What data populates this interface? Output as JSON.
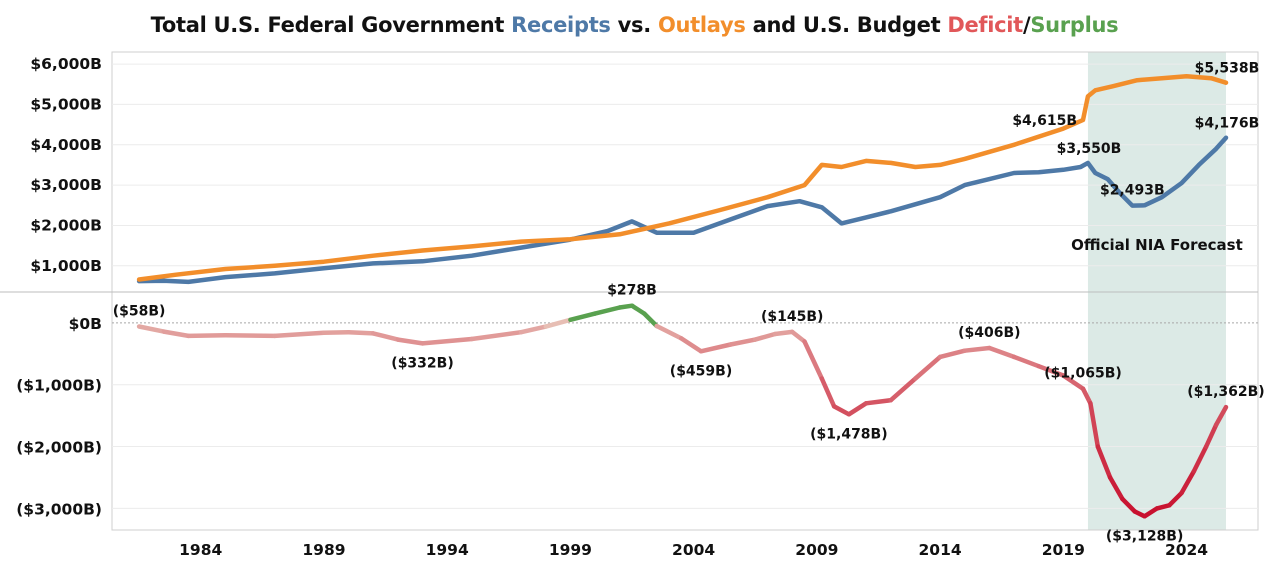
{
  "title": {
    "part1": "Total U.S. Federal Government ",
    "receipts": "Receipts",
    "part2": " vs. ",
    "outlays": "Outlays",
    "part3": " and U.S. Budget ",
    "deficit": "Deficit",
    "slash": "/",
    "surplus": "Surplus"
  },
  "colors": {
    "receipts": "#4E79A7",
    "outlays": "#F28E2B",
    "deficit_dark": "#C8102E",
    "deficit_light": "#E8C3B8",
    "surplus": "#59A14F",
    "forecast_band": "#DCEAE6",
    "title_text": "#111111"
  },
  "chart_data": [
    {
      "type": "line",
      "panel": "top",
      "xlabel": "",
      "ylabel": "",
      "xlim": [
        1980.4,
        2026.9
      ],
      "ylim": [
        350,
        6300
      ],
      "yticks": [
        1000,
        2000,
        3000,
        4000,
        5000,
        6000
      ],
      "ytick_labels": [
        "$1,000B",
        "$2,000B",
        "$3,000B",
        "$4,000B",
        "$5,000B",
        "$6,000B"
      ],
      "forecast_band": {
        "x0": 2020.0,
        "x1": 2025.6,
        "label": "Official NIA Forecast"
      },
      "series": [
        {
          "name": "Receipts",
          "color_key": "receipts",
          "x": [
            1981.5,
            1982.5,
            1983.5,
            1985,
            1987,
            1989,
            1991,
            1993,
            1995,
            1997,
            1999,
            2000.5,
            2001.5,
            2002.5,
            2004,
            2005.5,
            2007,
            2008.3,
            2009.2,
            2010,
            2011,
            2012,
            2014,
            2015,
            2016,
            2017,
            2018,
            2019,
            2019.7,
            2020.0,
            2020.3,
            2020.8,
            2021.3,
            2021.8,
            2022.3,
            2023,
            2023.8,
            2024.5,
            2025.2,
            2025.6
          ],
          "y": [
            620,
            630,
            600,
            720,
            810,
            940,
            1060,
            1110,
            1250,
            1450,
            1650,
            1860,
            2100,
            1820,
            1820,
            2150,
            2480,
            2600,
            2450,
            2050,
            2200,
            2350,
            2700,
            3000,
            3150,
            3300,
            3320,
            3380,
            3450,
            3550,
            3300,
            3150,
            2800,
            2493,
            2500,
            2700,
            3050,
            3500,
            3900,
            4176
          ]
        },
        {
          "name": "Outlays",
          "color_key": "outlays",
          "x": [
            1981.5,
            1983,
            1985,
            1987,
            1989,
            1991,
            1993,
            1995,
            1997,
            1999,
            2001,
            2003,
            2005,
            2007,
            2008.5,
            2009.2,
            2010,
            2011,
            2012,
            2013,
            2014,
            2015,
            2017,
            2019,
            2019.8,
            2020.0,
            2020.3,
            2021,
            2022,
            2023,
            2024,
            2025,
            2025.6
          ],
          "y": [
            660,
            780,
            920,
            1000,
            1100,
            1250,
            1380,
            1480,
            1600,
            1660,
            1780,
            2050,
            2370,
            2700,
            3000,
            3500,
            3450,
            3600,
            3550,
            3450,
            3500,
            3650,
            4000,
            4400,
            4615,
            5200,
            5350,
            5450,
            5600,
            5650,
            5700,
            5650,
            5538
          ]
        }
      ],
      "data_labels": [
        {
          "text": "$5,538B",
          "x": 2025.6,
          "y": 5538,
          "anchor": "above-right"
        },
        {
          "text": "$4,615B",
          "x": 2019.8,
          "y": 4615,
          "anchor": "left"
        },
        {
          "text": "$4,176B",
          "x": 2025.6,
          "y": 4176,
          "anchor": "above-right"
        },
        {
          "text": "$3,550B",
          "x": 2020.0,
          "y": 3550,
          "anchor": "above-right"
        },
        {
          "text": "$2,493B",
          "x": 2021.8,
          "y": 2493,
          "anchor": "above"
        }
      ]
    },
    {
      "type": "line",
      "panel": "bottom",
      "xlabel": "",
      "ylabel": "",
      "xlim": [
        1980.4,
        2026.9
      ],
      "ylim": [
        -3350,
        500
      ],
      "yticks": [
        -3000,
        -2000,
        -1000,
        0
      ],
      "ytick_labels": [
        "($3,000B)",
        "($2,000B)",
        "($1,000B)",
        "$0B"
      ],
      "xticks": [
        1984,
        1989,
        1994,
        1999,
        2004,
        2009,
        2014,
        2019,
        2024
      ],
      "xtick_labels": [
        "1984",
        "1989",
        "1994",
        "1999",
        "2004",
        "2009",
        "2014",
        "2019",
        "2024"
      ],
      "series": [
        {
          "name": "Deficit/Surplus",
          "x": [
            1981.5,
            1982.5,
            1983.5,
            1985,
            1987,
            1989,
            1990,
            1991,
            1992,
            1993,
            1995,
            1997,
            1998,
            1999,
            2000,
            2001,
            2001.5,
            2002,
            2002.5,
            2003.5,
            2004.3,
            2005.5,
            2006.5,
            2007.3,
            2008,
            2008.5,
            2009.2,
            2009.7,
            2010.3,
            2011,
            2012,
            2013,
            2014,
            2015,
            2016,
            2017,
            2018,
            2019,
            2019.8,
            2020.1,
            2020.4,
            2020.9,
            2021.4,
            2021.9,
            2022.3,
            2022.8,
            2023.3,
            2023.8,
            2024.3,
            2024.8,
            2025.2,
            2025.6
          ],
          "y": [
            -58,
            -140,
            -210,
            -200,
            -210,
            -160,
            -150,
            -170,
            -270,
            -332,
            -260,
            -150,
            -60,
            50,
            150,
            250,
            278,
            150,
            -50,
            -250,
            -459,
            -350,
            -270,
            -180,
            -145,
            -300,
            -900,
            -1350,
            -1478,
            -1300,
            -1250,
            -900,
            -550,
            -450,
            -406,
            -550,
            -700,
            -850,
            -1065,
            -1300,
            -2000,
            -2500,
            -2850,
            -3050,
            -3128,
            -3000,
            -2950,
            -2750,
            -2400,
            -2000,
            -1650,
            -1362
          ]
        }
      ],
      "data_labels": [
        {
          "text": "($58B)",
          "x": 1981.5,
          "y": -58,
          "anchor": "above"
        },
        {
          "text": "$278B",
          "x": 2001.5,
          "y": 278,
          "anchor": "above"
        },
        {
          "text": "($145B)",
          "x": 2008.0,
          "y": -145,
          "anchor": "above"
        },
        {
          "text": "($332B)",
          "x": 1993.0,
          "y": -332,
          "anchor": "below"
        },
        {
          "text": "($459B)",
          "x": 2004.3,
          "y": -459,
          "anchor": "below"
        },
        {
          "text": "($406B)",
          "x": 2016.0,
          "y": -406,
          "anchor": "above"
        },
        {
          "text": "($1,478B)",
          "x": 2010.3,
          "y": -1478,
          "anchor": "below"
        },
        {
          "text": "($1,065B)",
          "x": 2019.8,
          "y": -1065,
          "anchor": "above"
        },
        {
          "text": "($1,362B)",
          "x": 2025.6,
          "y": -1362,
          "anchor": "above"
        },
        {
          "text": "($3,128B)",
          "x": 2022.3,
          "y": -3128,
          "anchor": "below"
        }
      ]
    }
  ]
}
